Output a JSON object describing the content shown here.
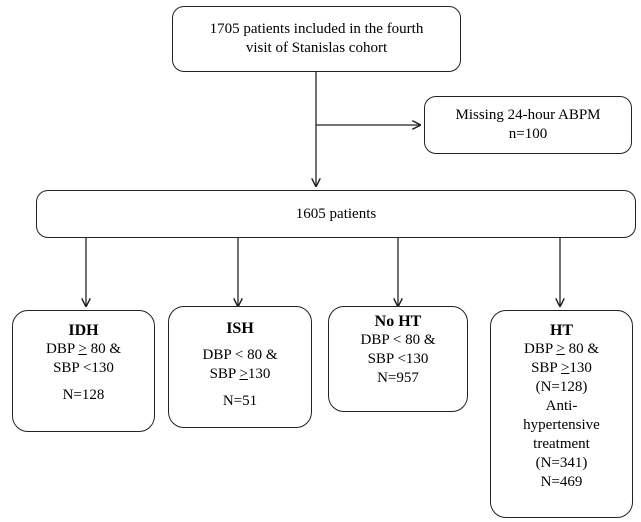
{
  "top_box": {
    "line1": "1705 patients included in the fourth",
    "line2": "visit of Stanislas cohort"
  },
  "missing_box": {
    "line1": "Missing 24-hour ABPM",
    "line2": "n=100"
  },
  "middle_box": {
    "label": "1605 patients"
  },
  "outcomes": {
    "idh": {
      "title": "IDH",
      "l1a": "DBP ",
      "l1ge": ">",
      "l1b": " 80 &",
      "l2": "SBP <130",
      "n": "N=128"
    },
    "ish": {
      "title": "ISH",
      "l1": "DBP < 80 &",
      "l2a": "SBP ",
      "l2ge": ">",
      "l2b": "130",
      "n": "N=51"
    },
    "noht": {
      "title": "No HT",
      "l1": "DBP < 80 &",
      "l2": "SBP <130",
      "n": "N=957"
    },
    "ht": {
      "title": "HT",
      "l1a": "DBP ",
      "l1ge": ">",
      "l1b": " 80 &",
      "l2a": "SBP ",
      "l2ge": ">",
      "l2b": "130",
      "l3": "(N=128)",
      "l4": "Anti-",
      "l5": "hypertensive",
      "l6": "treatment",
      "l7": "(N=341)",
      "n": "N=469"
    }
  }
}
